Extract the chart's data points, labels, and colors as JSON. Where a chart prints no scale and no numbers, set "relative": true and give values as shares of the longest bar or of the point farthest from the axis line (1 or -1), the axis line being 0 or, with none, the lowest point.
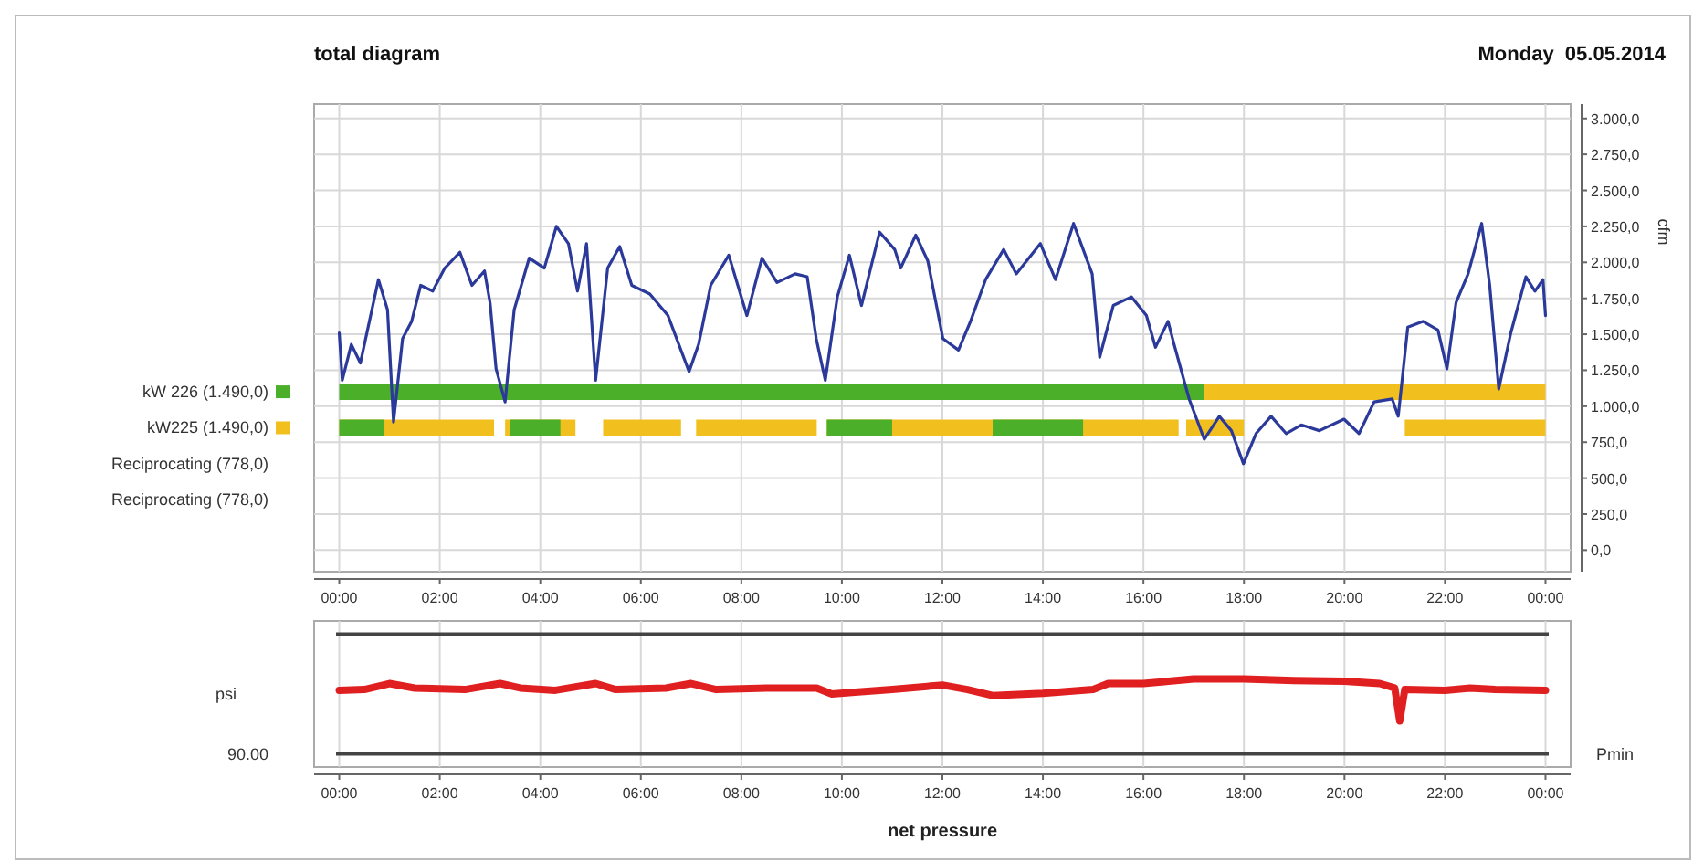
{
  "chart_data": [
    {
      "type": "line",
      "title": "total diagram",
      "subtitle": "Monday  05.05.2014",
      "ylabel": "cfm",
      "xlim": [
        -0.5,
        24.5
      ],
      "ylim": [
        -150,
        3100
      ],
      "xticks": [
        {
          "value": 0,
          "label": "00:00"
        },
        {
          "value": 2,
          "label": "02:00"
        },
        {
          "value": 4,
          "label": "04:00"
        },
        {
          "value": 6,
          "label": "06:00"
        },
        {
          "value": 8,
          "label": "08:00"
        },
        {
          "value": 10,
          "label": "10:00"
        },
        {
          "value": 12,
          "label": "12:00"
        },
        {
          "value": 14,
          "label": "14:00"
        },
        {
          "value": 16,
          "label": "16:00"
        },
        {
          "value": 18,
          "label": "18:00"
        },
        {
          "value": 20,
          "label": "20:00"
        },
        {
          "value": 22,
          "label": "22:00"
        },
        {
          "value": 24,
          "label": "00:00"
        }
      ],
      "yticks": [
        {
          "value": 0,
          "label": "0,0"
        },
        {
          "value": 250,
          "label": "250,0"
        },
        {
          "value": 500,
          "label": "500,0"
        },
        {
          "value": 750,
          "label": "750,0"
        },
        {
          "value": 1000,
          "label": "1.000,0"
        },
        {
          "value": 1250,
          "label": "1.250,0"
        },
        {
          "value": 1500,
          "label": "1.500,0"
        },
        {
          "value": 1750,
          "label": "1.750,0"
        },
        {
          "value": 2000,
          "label": "2.000,0"
        },
        {
          "value": 2250,
          "label": "2.250,0"
        },
        {
          "value": 2500,
          "label": "2.500,0"
        },
        {
          "value": 2750,
          "label": "2.750,0"
        },
        {
          "value": 3000,
          "label": "3.000,0"
        }
      ],
      "grid": true,
      "legend": "left",
      "annotations": [
        "Reciprocating (778,0)",
        "Reciprocating (778,0)"
      ],
      "series": [
        {
          "name": "kW 226 (1.490,0)",
          "color": "#4caf2a",
          "x": [
            0,
            17.2
          ],
          "values": [
            1100,
            1100
          ]
        },
        {
          "color": "#f2c01e",
          "x": [
            17.2,
            24
          ],
          "values": [
            1100,
            1100
          ]
        },
        {
          "name": "kW225 (1.490,0)",
          "color": "#f2c01e",
          "x": [
            0,
            3.08,
            3.1,
            3.3,
            4.7,
            4.75,
            5.25,
            6.8,
            6.9,
            7.1,
            9.5,
            9.6,
            9.7,
            16.7,
            16.8,
            16.85,
            18.0,
            18.1,
            21.2,
            24
          ],
          "values": [
            850,
            850,
            null,
            850,
            850,
            null,
            850,
            850,
            null,
            850,
            850,
            null,
            850,
            850,
            null,
            850,
            850,
            null,
            850,
            850
          ]
        },
        {
          "color": "#4caf2a",
          "x": [
            0,
            0.9,
            0.95,
            3.4,
            4.4,
            4.45,
            9.7,
            11.0,
            11.05,
            13.0,
            14.8
          ],
          "values": [
            850,
            850,
            null,
            850,
            850,
            null,
            850,
            850,
            null,
            850,
            850
          ]
        },
        {
          "color": "#2b3a9a",
          "x": [
            0,
            0.06,
            0.24,
            0.42,
            0.78,
            0.96,
            1.08,
            1.26,
            1.44,
            1.62,
            1.86,
            2.1,
            2.4,
            2.64,
            2.89,
            3.0,
            3.12,
            3.3,
            3.48,
            3.78,
            4.08,
            4.32,
            4.56,
            4.74,
            4.92,
            5.1,
            5.34,
            5.58,
            5.82,
            6.18,
            6.54,
            6.96,
            7.15,
            7.39,
            7.75,
            8.11,
            8.41,
            8.71,
            9.07,
            9.31,
            9.49,
            9.67,
            9.91,
            10.15,
            10.39,
            10.75,
            11.05,
            11.17,
            11.47,
            11.71,
            12.01,
            12.32,
            12.56,
            12.86,
            13.22,
            13.47,
            13.95,
            14.25,
            14.61,
            14.98,
            15.13,
            15.4,
            15.76,
            16.06,
            16.24,
            16.49,
            16.61,
            16.91,
            17.21,
            17.51,
            17.75,
            17.99,
            18.24,
            18.54,
            18.84,
            19.14,
            19.5,
            19.99,
            20.29,
            20.59,
            20.95,
            21.07,
            21.26,
            21.56,
            21.86,
            22.04,
            22.22,
            22.46,
            22.73,
            22.89,
            23.07,
            23.31,
            23.61,
            23.79,
            23.95,
            24
          ],
          "values": [
            1510,
            1180,
            1430,
            1300,
            1880,
            1670,
            890,
            1470,
            1590,
            1840,
            1800,
            1960,
            2070,
            1840,
            1940,
            1720,
            1260,
            1030,
            1670,
            2030,
            1960,
            2250,
            2130,
            1800,
            2130,
            1180,
            1960,
            2110,
            1840,
            1780,
            1630,
            1240,
            1430,
            1840,
            2050,
            1630,
            2030,
            1860,
            1920,
            1900,
            1470,
            1180,
            1760,
            2050,
            1700,
            2210,
            2090,
            1960,
            2190,
            2010,
            1470,
            1390,
            1590,
            1880,
            2090,
            1920,
            2130,
            1880,
            2270,
            1920,
            1340,
            1700,
            1760,
            1630,
            1410,
            1590,
            1430,
            1050,
            770,
            930,
            830,
            600,
            810,
            930,
            810,
            870,
            830,
            910,
            810,
            1030,
            1050,
            930,
            1550,
            1590,
            1530,
            1260,
            1720,
            1920,
            2270,
            1840,
            1120,
            1510,
            1900,
            1800,
            1880,
            1630
          ]
        }
      ]
    },
    {
      "type": "line",
      "xlabel": "net pressure",
      "ylabel": "psi",
      "relative": true,
      "annotations": [
        "90.00"
      ],
      "xlim": [
        -0.5,
        24.5
      ],
      "xticks": [
        {
          "value": 0,
          "label": "00:00"
        },
        {
          "value": 2,
          "label": "02:00"
        },
        {
          "value": 4,
          "label": "04:00"
        },
        {
          "value": 6,
          "label": "06:00"
        },
        {
          "value": 8,
          "label": "08:00"
        },
        {
          "value": 10,
          "label": "10:00"
        },
        {
          "value": 12,
          "label": "12:00"
        },
        {
          "value": 14,
          "label": "14:00"
        },
        {
          "value": 16,
          "label": "16:00"
        },
        {
          "value": 18,
          "label": "18:00"
        },
        {
          "value": 20,
          "label": "20:00"
        },
        {
          "value": 22,
          "label": "22:00"
        },
        {
          "value": 24,
          "label": "00:00"
        }
      ],
      "grid": "x",
      "legend": false,
      "ref_lines": [
        {
          "axis": "y",
          "value": 0,
          "label": "Pmin",
          "color": "#444444"
        },
        {
          "axis": "y",
          "value": 1.6,
          "color": "#444444"
        }
      ],
      "series": [
        {
          "color": "#e02020",
          "x": [
            0,
            0.5,
            1.0,
            1.5,
            2.5,
            3.2,
            3.6,
            4.3,
            5.1,
            5.5,
            6.5,
            7.0,
            7.5,
            8.5,
            9.5,
            9.8,
            10.2,
            11,
            12,
            12.5,
            13,
            14,
            15,
            15.3,
            16,
            16.5,
            17,
            18,
            19,
            20,
            20.7,
            21.0,
            21.1,
            21.2,
            22,
            22.5,
            23,
            24
          ],
          "values": [
            0.85,
            0.86,
            0.94,
            0.88,
            0.86,
            0.94,
            0.88,
            0.85,
            0.94,
            0.86,
            0.88,
            0.94,
            0.86,
            0.88,
            0.88,
            0.8,
            0.82,
            0.86,
            0.92,
            0.86,
            0.78,
            0.81,
            0.86,
            0.94,
            0.94,
            0.97,
            1.0,
            1.0,
            0.98,
            0.97,
            0.94,
            0.88,
            0.44,
            0.86,
            0.85,
            0.88,
            0.86,
            0.85
          ]
        }
      ]
    }
  ]
}
